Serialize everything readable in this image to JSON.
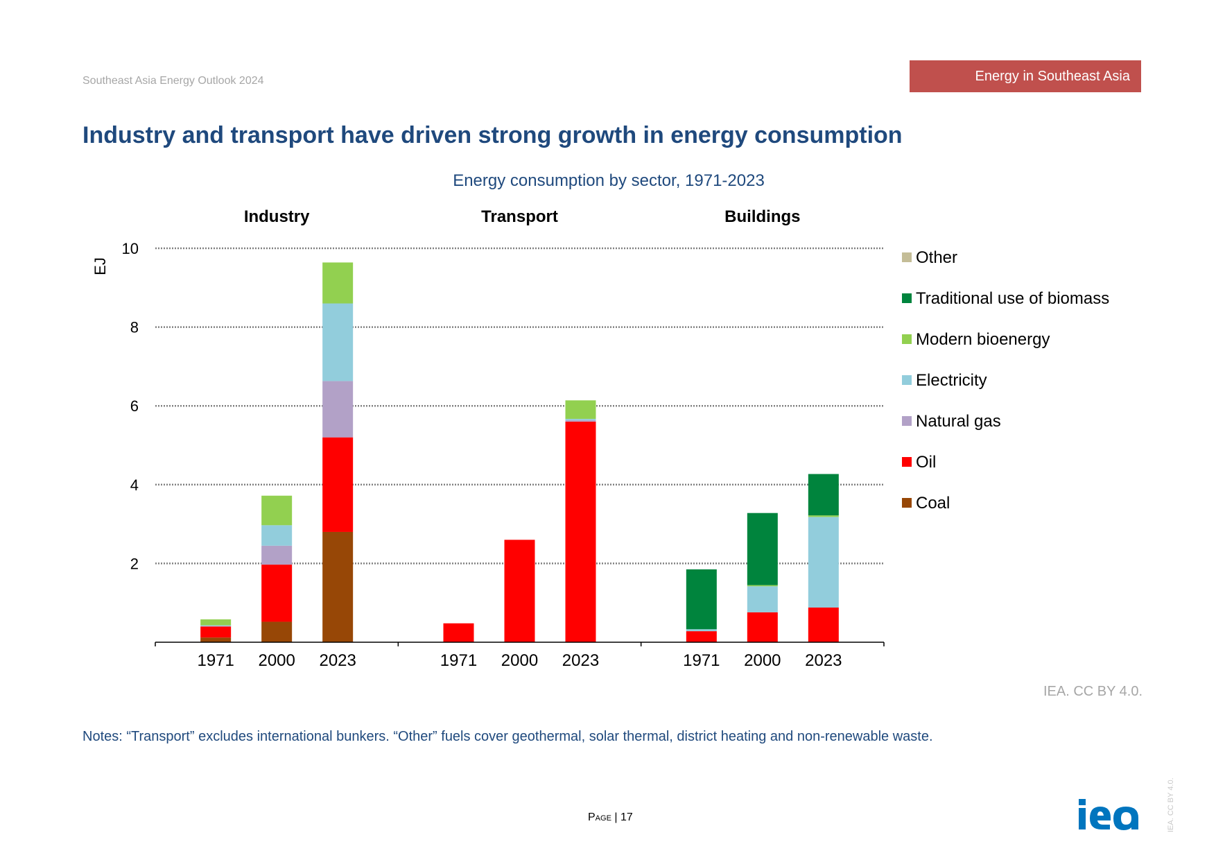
{
  "header": {
    "report_name": "Southeast Asia Energy Outlook 2024",
    "section_tag": "Energy in Southeast Asia",
    "section_tag_color": "#c0504d"
  },
  "slide_title": "Industry and transport have driven strong growth in energy consumption",
  "chart_data": {
    "type": "bar",
    "stacked": true,
    "title": "Energy consumption by sector, 1971-2023",
    "ylabel": "EJ",
    "ylim": [
      0,
      10
    ],
    "yticks": [
      2,
      4,
      6,
      8,
      10
    ],
    "grid": true,
    "legend_position": "right",
    "groups": [
      "Industry",
      "Transport",
      "Buildings"
    ],
    "categories": [
      "1971",
      "2000",
      "2023"
    ],
    "series": [
      {
        "name": "Coal",
        "color": "#974706",
        "values": [
          [
            0.12,
            0.52,
            2.8
          ],
          [
            0,
            0,
            0
          ],
          [
            0,
            0,
            0
          ]
        ]
      },
      {
        "name": "Oil",
        "color": "#ff0000",
        "values": [
          [
            0.28,
            1.45,
            2.4
          ],
          [
            0.48,
            2.6,
            5.6
          ],
          [
            0.28,
            0.76,
            0.88
          ]
        ]
      },
      {
        "name": "Natural gas",
        "color": "#b2a1c7",
        "values": [
          [
            0.01,
            0.48,
            1.43
          ],
          [
            0,
            0,
            0.04
          ],
          [
            0,
            0,
            0
          ]
        ]
      },
      {
        "name": "Electricity",
        "color": "#92cddc",
        "values": [
          [
            0.02,
            0.52,
            1.97
          ],
          [
            0,
            0,
            0.03
          ],
          [
            0.05,
            0.66,
            2.3
          ]
        ]
      },
      {
        "name": "Modern bioenergy",
        "color": "#92d050",
        "values": [
          [
            0.15,
            0.75,
            1.04
          ],
          [
            0,
            0,
            0.47
          ],
          [
            0,
            0.03,
            0.04
          ]
        ]
      },
      {
        "name": "Traditional use of biomass",
        "color": "#00843d",
        "values": [
          [
            0,
            0,
            0
          ],
          [
            0,
            0,
            0
          ],
          [
            1.52,
            1.83,
            1.05
          ]
        ]
      },
      {
        "name": "Other",
        "color": "#c4bd97",
        "values": [
          [
            0,
            0,
            0
          ],
          [
            0,
            0,
            0
          ],
          [
            0,
            0,
            0
          ]
        ]
      }
    ]
  },
  "source_credit": "IEA. CC BY 4.0.",
  "notes": "Notes: “Transport” excludes international bunkers. “Other” fuels cover geothermal, solar thermal, district heating and non-renewable waste.",
  "footer": {
    "page_label": "Page",
    "page_number": "17",
    "side_license": "IEA. CC BY 4.0.",
    "logo_text": "iea",
    "logo_color": "#0075be"
  }
}
